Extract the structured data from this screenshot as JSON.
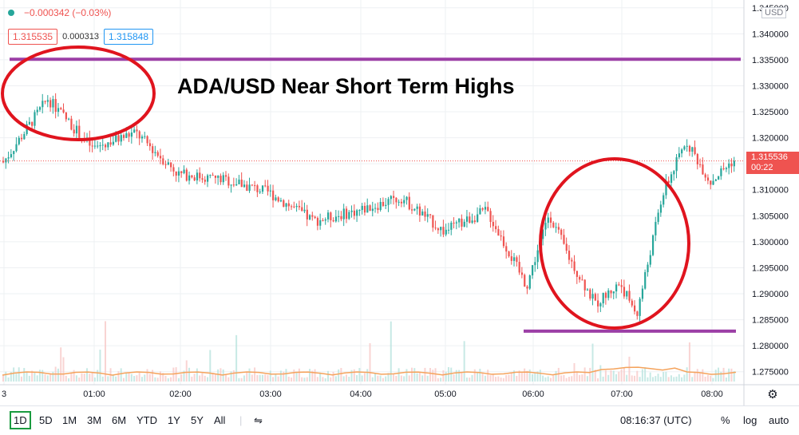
{
  "header": {
    "change": "−0.000342 (−0.03%)",
    "bid": "1.315535",
    "spread": "0.000313",
    "ask": "1.315848"
  },
  "annotation": {
    "headline": "ADA/USD Near Short Term Highs"
  },
  "price_scale": {
    "currency": "USD",
    "last_price": "1.315536",
    "countdown": "00:22",
    "ticks": [
      "1.345000",
      "1.340000",
      "1.335000",
      "1.330000",
      "1.325000",
      "1.320000",
      "1.315000",
      "1.310000",
      "1.305000",
      "1.300000",
      "1.295000",
      "1.290000",
      "1.285000",
      "1.280000",
      "1.275000"
    ]
  },
  "time_axis": {
    "ticks": [
      "3",
      "01:00",
      "02:00",
      "03:00",
      "04:00",
      "05:00",
      "06:00",
      "07:00",
      "08:00"
    ]
  },
  "toolbar": {
    "timeframes": [
      "1D",
      "5D",
      "1M",
      "3M",
      "6M",
      "YTD",
      "1Y",
      "5Y",
      "All"
    ],
    "active_timeframe": "1D",
    "clock": "08:16:37 (UTC)",
    "percent": "%",
    "log": "log",
    "auto": "auto"
  },
  "colors": {
    "up": "#26a69a",
    "down": "#ef5350",
    "circle": "#e0141e",
    "line": "#9c3fa6",
    "volume_ma": "#f5a35c"
  },
  "chart_data": {
    "type": "candlestick",
    "ylim": [
      1.2725,
      1.3465
    ],
    "x": [
      "00:00",
      "00:30",
      "01:00",
      "01:30",
      "02:00",
      "02:30",
      "03:00",
      "03:30",
      "04:00",
      "04:30",
      "05:00",
      "05:30",
      "06:00",
      "06:15",
      "06:30",
      "06:45",
      "07:00",
      "07:15",
      "07:30",
      "07:45",
      "08:00",
      "08:15"
    ],
    "close": [
      1.315,
      1.3275,
      1.318,
      1.321,
      1.313,
      1.312,
      1.3095,
      1.304,
      1.306,
      1.3085,
      1.302,
      1.306,
      1.2915,
      1.3055,
      1.297,
      1.288,
      1.292,
      1.286,
      1.309,
      1.3195,
      1.3115,
      1.31554
    ],
    "horizontal_lines": [
      1.3351,
      1.2828
    ],
    "current_price": 1.315536
  }
}
